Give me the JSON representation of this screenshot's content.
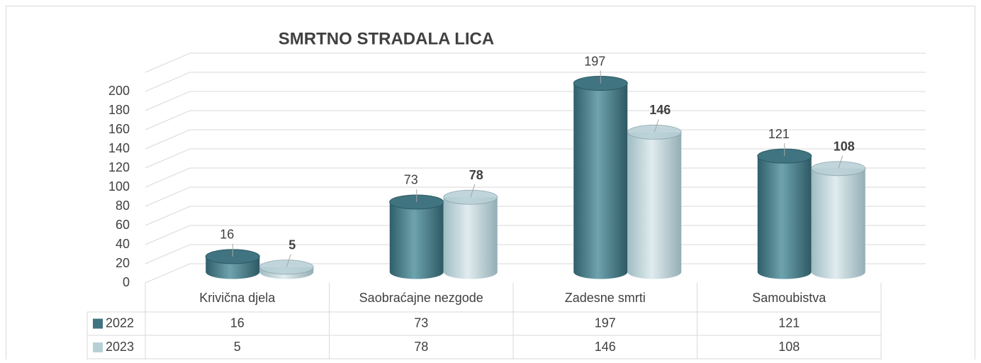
{
  "chart_data": {
    "type": "bar3d",
    "title": "SMRTNO STRADALA LICA",
    "categories": [
      "Krivična djela",
      "Saobraćajne nezgode",
      "Zadesne smrti",
      "Samoubistva"
    ],
    "series": [
      {
        "name": "2022",
        "color": "#3f7480",
        "values": [
          16,
          73,
          197,
          121
        ]
      },
      {
        "name": "2023",
        "color": "#b7d0d6",
        "values": [
          5,
          78,
          146,
          108
        ]
      }
    ],
    "ylim": [
      0,
      220
    ],
    "yticks": [
      0,
      20,
      40,
      60,
      80,
      100,
      120,
      140,
      160,
      180,
      200
    ],
    "grid": true
  }
}
